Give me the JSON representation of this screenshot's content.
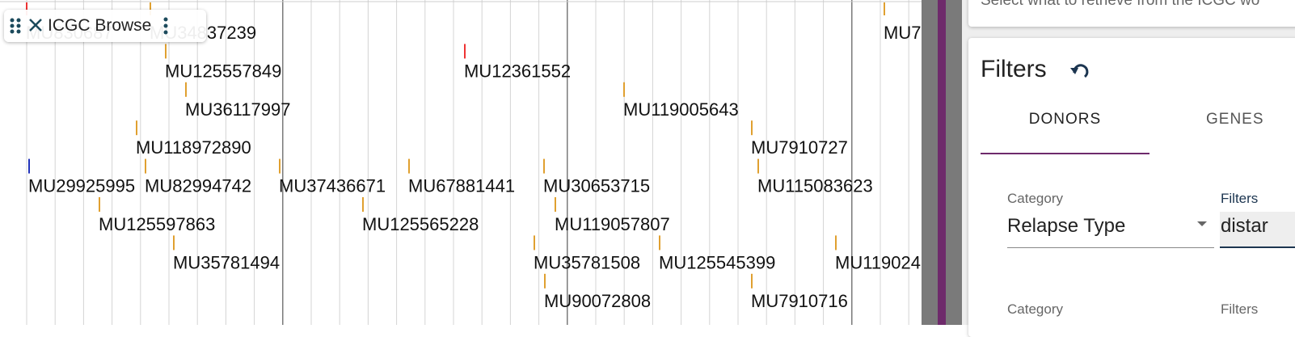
{
  "track": {
    "title": "ICGC Browse",
    "features": [
      {
        "label": "MU830687"
      },
      {
        "label": "MU34837239"
      },
      {
        "label": "MU7"
      },
      {
        "label": "MU125557849"
      },
      {
        "label": "MU12361552"
      },
      {
        "label": "MU36117997"
      },
      {
        "label": "MU119005643"
      },
      {
        "label": "MU118972890"
      },
      {
        "label": "MU7910727"
      },
      {
        "label": "MU29925995"
      },
      {
        "label": "MU82994742"
      },
      {
        "label": "MU37436671"
      },
      {
        "label": "MU67881441"
      },
      {
        "label": "MU30653715"
      },
      {
        "label": "MU115083623"
      },
      {
        "label": "MU125597863"
      },
      {
        "label": "MU125565228"
      },
      {
        "label": "MU119057807"
      },
      {
        "label": "MU35781494"
      },
      {
        "label": "MU35781508"
      },
      {
        "label": "MU125545399"
      },
      {
        "label": "MU119024"
      },
      {
        "label": "MU90072808"
      },
      {
        "label": "MU7910716"
      }
    ]
  },
  "panel": {
    "intro": "Select what to retrieve from the ICGC wo",
    "filters_title": "Filters",
    "tabs": [
      "DONORS",
      "GENES"
    ],
    "rows": [
      {
        "category_label": "Category",
        "category_value": "Relapse Type",
        "filters_label": "Filters",
        "filters_value": "distar"
      },
      {
        "category_label": "Category",
        "filters_label": "Filters"
      }
    ]
  }
}
